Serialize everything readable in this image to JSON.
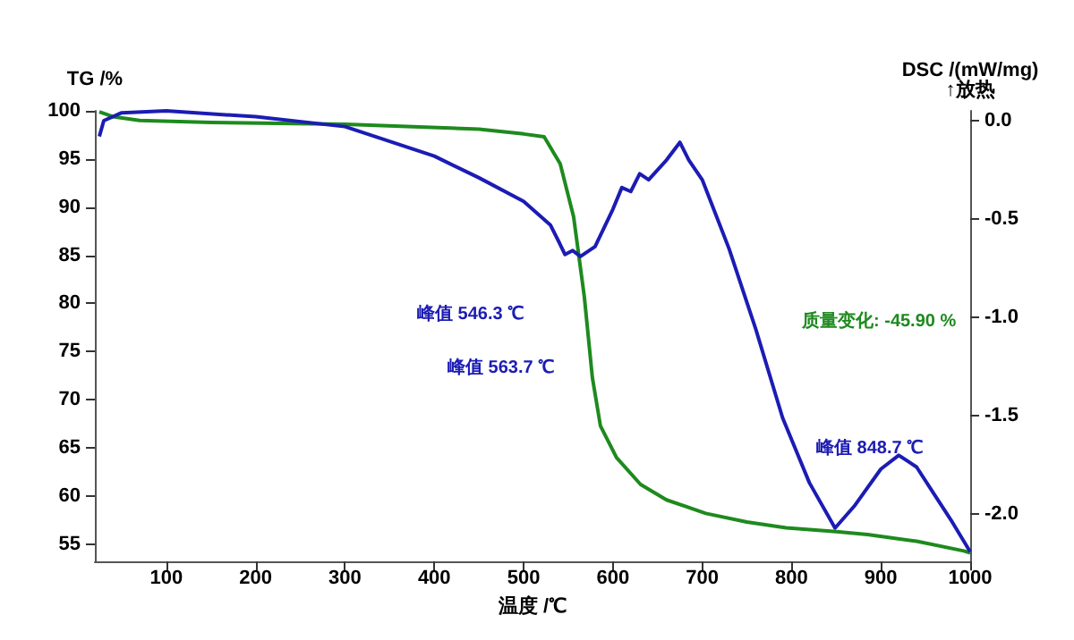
{
  "chart_data": {
    "type": "line",
    "xlabel": "温度 /℃",
    "ylabel": "TG /%",
    "y2label": "DSC /(mW/mg)\n↑放热",
    "xlim": [
      20,
      1000
    ],
    "xticks": [
      100,
      200,
      300,
      400,
      500,
      600,
      700,
      800,
      900,
      1000
    ],
    "ylim": [
      53.2,
      100
    ],
    "yticks": [
      55,
      60,
      65,
      70,
      75,
      80,
      85,
      90,
      95,
      100
    ],
    "y2lim": [
      -2.24,
      0.05
    ],
    "y2ticks": [
      {
        "value": 0,
        "label": "0.0"
      },
      {
        "value": -0.5,
        "label": "-0.5"
      },
      {
        "value": -1,
        "label": "-1.0"
      },
      {
        "value": -1.5,
        "label": "-1.5"
      },
      {
        "value": -2,
        "label": "-2.0"
      }
    ],
    "grid": false,
    "marker": "none",
    "line_style": "solid",
    "series": [
      {
        "color": "#1e8a1e",
        "x": [
          25,
          40,
          70,
          150,
          300,
          450,
          500,
          523,
          541,
          556,
          568,
          577,
          586,
          604,
          631,
          660,
          704,
          750,
          794,
          850,
          885,
          940,
          993,
          1000
        ],
        "values": [
          99.9,
          99.4,
          99.0,
          98.8,
          98.6,
          98.1,
          97.6,
          97.3,
          94.5,
          89,
          80.7,
          72.3,
          67.3,
          64,
          61.2,
          59.6,
          58.2,
          57.3,
          56.7,
          56.3,
          56,
          55.3,
          54.3,
          54.1
        ]
      },
      {
        "color": "#1c1cb4",
        "axis": "y2",
        "x": [
          25,
          30,
          50,
          100,
          200,
          300,
          400,
          450,
          500,
          530,
          540,
          546.3,
          555,
          563.7,
          580,
          600,
          610,
          620,
          630,
          640,
          660,
          675,
          685,
          700,
          730,
          760,
          790,
          820,
          848.7,
          870,
          900,
          920,
          940,
          960,
          980,
          1000
        ],
        "values": [
          -0.08,
          0.0,
          0.04,
          0.05,
          0.02,
          -0.03,
          -0.18,
          -0.29,
          -0.41,
          -0.53,
          -0.62,
          -0.68,
          -0.66,
          -0.69,
          -0.64,
          -0.45,
          -0.34,
          -0.36,
          -0.27,
          -0.3,
          -0.2,
          -0.11,
          -0.2,
          -0.3,
          -0.65,
          -1.06,
          -1.51,
          -1.84,
          -2.07,
          -1.96,
          -1.77,
          -1.7,
          -1.76,
          -1.9,
          -2.04,
          -2.19
        ]
      }
    ],
    "annotations": [
      "峰值 546.3 ℃",
      "峰值 563.7 ℃",
      "峰值 848.7 ℃",
      "质量变化: -45.90 %"
    ]
  }
}
